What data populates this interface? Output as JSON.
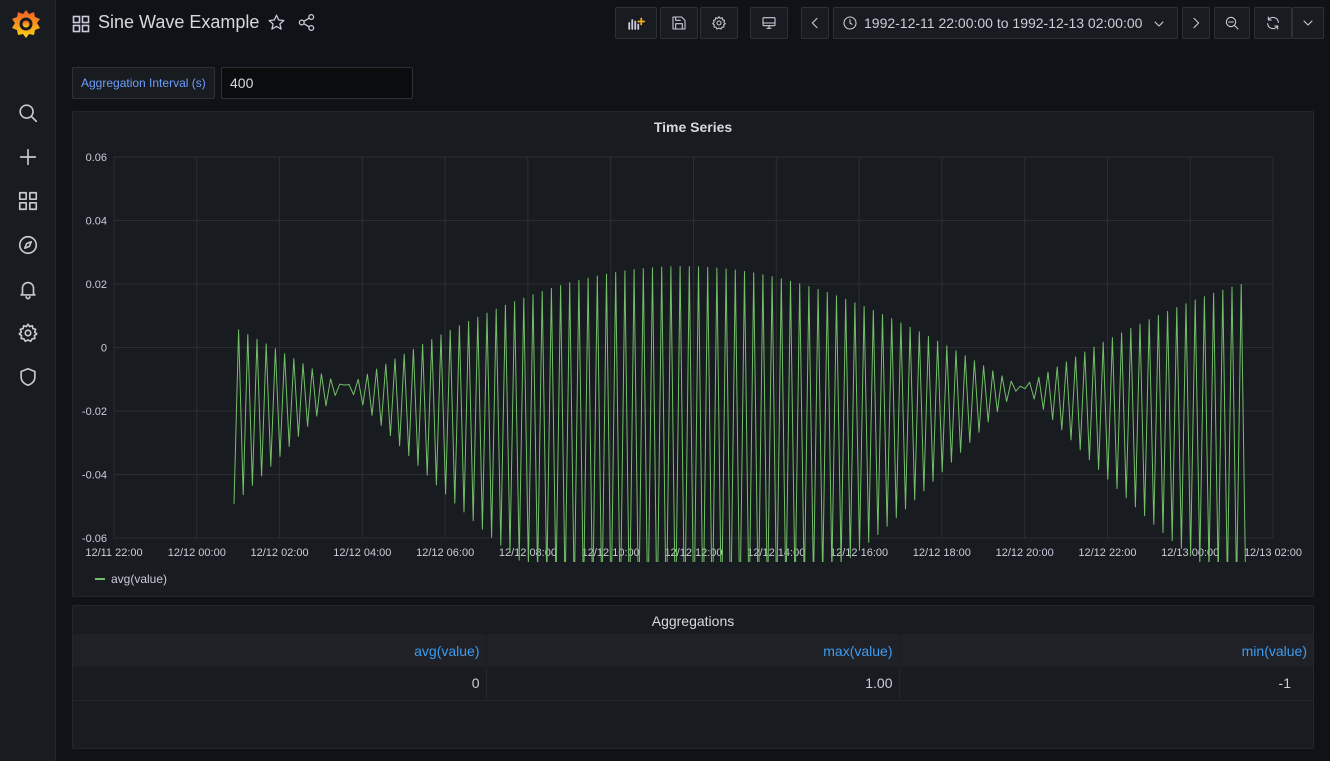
{
  "dashboard": {
    "title": "Sine Wave Example"
  },
  "timerange": {
    "label": "1992-12-11 22:00:00 to 1992-12-13 02:00:00"
  },
  "variable": {
    "label": "Aggregation Interval (s)",
    "value": "400"
  },
  "timeseries_panel": {
    "title": "Time Series",
    "legend": "avg(value)"
  },
  "aggregations_panel": {
    "title": "Aggregations",
    "columns": [
      "avg(value)",
      "max(value)",
      "min(value)"
    ],
    "row": [
      "0",
      "1.00",
      "-1"
    ]
  },
  "colors": {
    "series": "#73bf69",
    "link": "#3d9df2",
    "accent": "#f05a28"
  },
  "chart_data": {
    "type": "line",
    "title": "Time Series",
    "xlabel": "",
    "ylabel": "",
    "ylim": [
      -0.06,
      0.06
    ],
    "yticks": [
      "0.06",
      "0.04",
      "0.02",
      "0",
      "-0.02",
      "-0.04",
      "-0.06"
    ],
    "yticks_values": [
      0.06,
      0.04,
      0.02,
      0,
      -0.02,
      -0.04,
      -0.06
    ],
    "xticks": [
      "12/11 22:00",
      "12/12 00:00",
      "12/12 02:00",
      "12/12 04:00",
      "12/12 06:00",
      "12/12 08:00",
      "12/12 10:00",
      "12/12 12:00",
      "12/12 14:00",
      "12/12 16:00",
      "12/12 18:00",
      "12/12 20:00",
      "12/12 22:00",
      "12/13 00:00",
      "12/13 02:00"
    ],
    "xlim_hours": [
      0,
      28
    ],
    "series": [
      {
        "name": "avg(value)",
        "x_start_hours": 2.9,
        "x_end_hours": 27.4,
        "point_spacing_hours": 0.1111,
        "alias_envelope": {
          "period_hours": 16.35,
          "phase_hours": 13.75,
          "amplitude_high": 0.038,
          "amplitude_low": 0.0765,
          "offset": -0.0125
        }
      }
    ]
  }
}
